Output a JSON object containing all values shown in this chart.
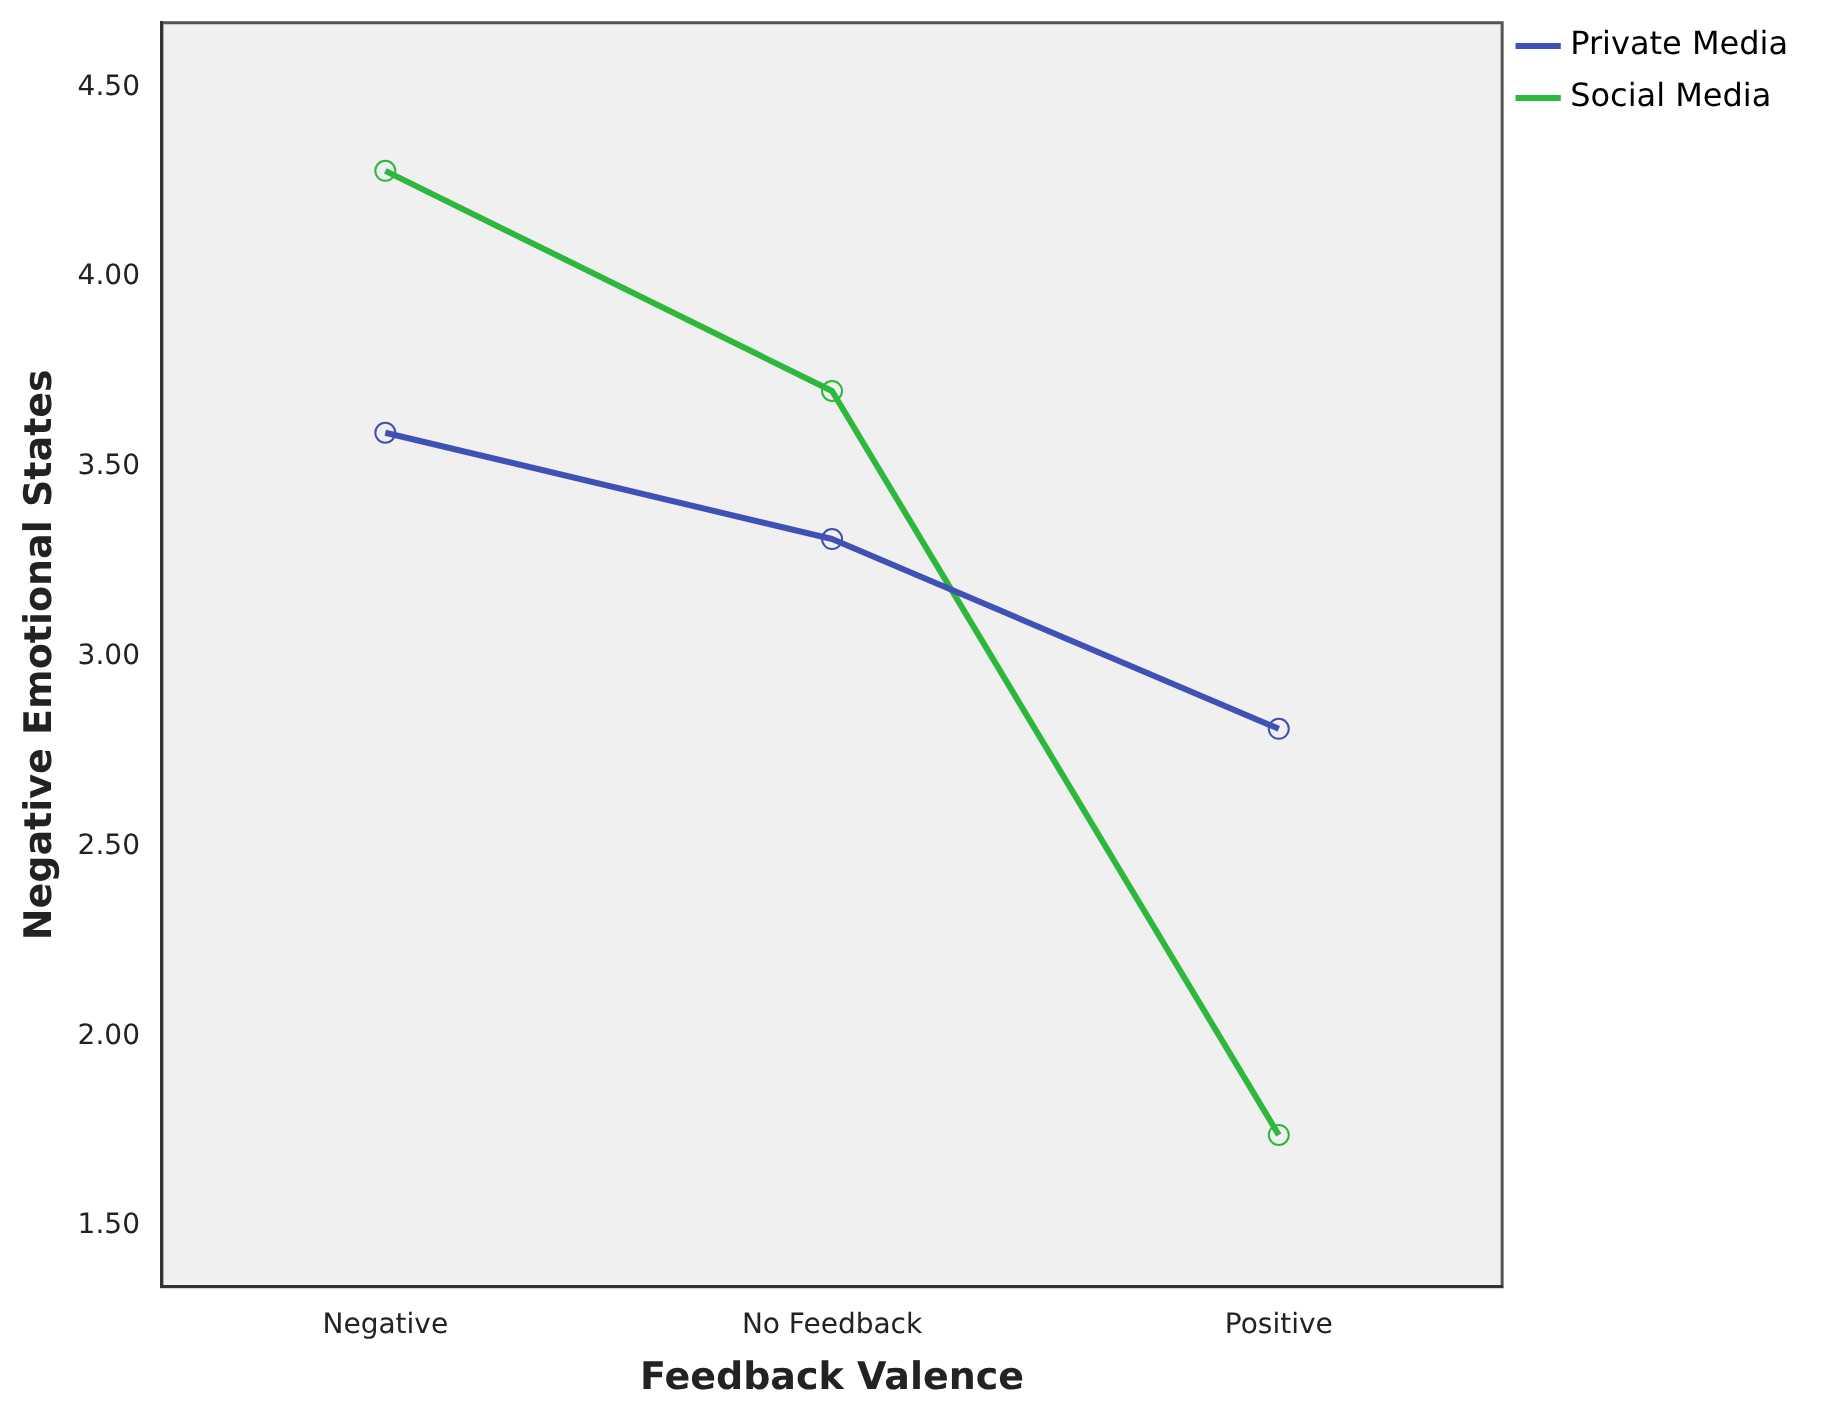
{
  "chart_data": {
    "type": "line",
    "xlabel": "Feedback Valence",
    "ylabel": "Negative Emotional States",
    "categories": [
      "Negative",
      "No Feedback",
      "Positive"
    ],
    "series": [
      {
        "name": "Private Media",
        "color": "#3f51b5",
        "values": [
          3.59,
          3.31,
          2.81
        ]
      },
      {
        "name": "Social Media",
        "color": "#2db83d",
        "values": [
          4.28,
          3.7,
          1.74
        ]
      }
    ],
    "ylim": [
      1.34,
      4.67
    ],
    "yticks": [
      {
        "value": 1.5,
        "label": "1.50"
      },
      {
        "value": 2,
        "label": "2.00"
      },
      {
        "value": 2.5,
        "label": "2.50"
      },
      {
        "value": 3,
        "label": "3.00"
      },
      {
        "value": 3.5,
        "label": "3.50"
      },
      {
        "value": 4,
        "label": "4.00"
      },
      {
        "value": 4.5,
        "label": "4.50"
      }
    ],
    "grid": false,
    "legend": "top right",
    "marker": "circle",
    "line_style": "solid"
  }
}
